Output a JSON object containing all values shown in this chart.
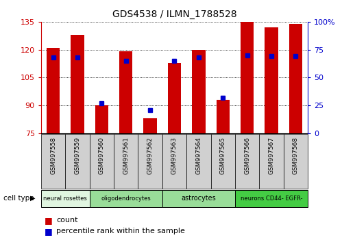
{
  "title": "GDS4538 / ILMN_1788528",
  "samples": [
    "GSM997558",
    "GSM997559",
    "GSM997560",
    "GSM997561",
    "GSM997562",
    "GSM997563",
    "GSM997564",
    "GSM997565",
    "GSM997566",
    "GSM997567",
    "GSM997568"
  ],
  "counts": [
    121,
    128,
    90,
    119,
    83,
    113,
    120,
    93,
    135,
    132,
    134
  ],
  "percentile_ranks": [
    68,
    68,
    27,
    65,
    21,
    65,
    68,
    32,
    70,
    69,
    69
  ],
  "ymin": 75,
  "ymax": 135,
  "yticks": [
    75,
    90,
    105,
    120,
    135
  ],
  "right_yticks": [
    0,
    25,
    50,
    75,
    100
  ],
  "cell_groups": [
    {
      "label": "neural rosettes",
      "start": 0,
      "end": 1,
      "color": "#e0f5e0"
    },
    {
      "label": "oligodendrocytes",
      "start": 2,
      "end": 4,
      "color": "#99dd99"
    },
    {
      "label": "astrocytes",
      "start": 5,
      "end": 7,
      "color": "#99dd99"
    },
    {
      "label": "neurons CD44- EGFR-",
      "start": 8,
      "end": 10,
      "color": "#44cc44"
    }
  ],
  "bar_color": "#cc0000",
  "dot_color": "#0000cc",
  "bar_width": 0.55,
  "left_axis_color": "#cc0000",
  "right_axis_color": "#0000cc",
  "sample_box_color": "#d0d0d0",
  "bg_color": "#ffffff"
}
